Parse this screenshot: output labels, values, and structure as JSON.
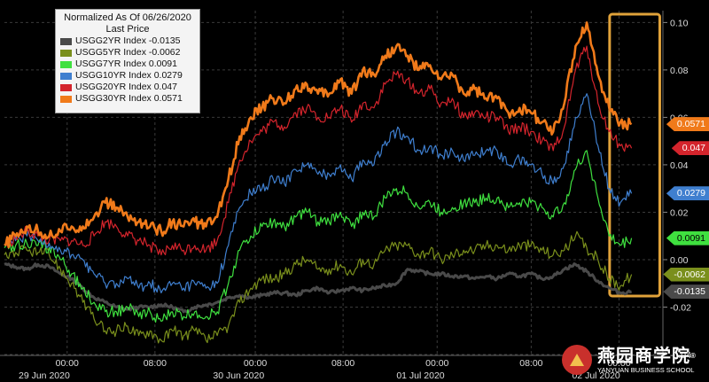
{
  "chart_data": {
    "type": "line",
    "legend": {
      "title_line1": "Normalized As Of 06/26/2020",
      "title_line2": "Last Price",
      "placement": "top-left"
    },
    "series": [
      {
        "name": "USGG2YR Index",
        "last": "-0.0135",
        "color": "#4a4a4a",
        "values": [
          -0.002,
          -0.003,
          -0.004,
          -0.002,
          -0.003,
          -0.006,
          -0.008,
          -0.012,
          -0.016,
          -0.018,
          -0.02,
          -0.021,
          -0.02,
          -0.02,
          -0.019,
          -0.02,
          -0.022,
          -0.02,
          -0.019,
          -0.018,
          -0.016,
          -0.015,
          -0.016,
          -0.015,
          -0.014,
          -0.014,
          -0.015,
          -0.013,
          -0.012,
          -0.014,
          -0.013,
          -0.012,
          -0.013,
          -0.012,
          -0.011,
          -0.01,
          -0.004,
          -0.005,
          -0.006,
          -0.006,
          -0.007,
          -0.007,
          -0.008,
          -0.007,
          -0.008,
          -0.006,
          -0.007,
          -0.006,
          -0.008,
          -0.007,
          -0.004,
          -0.002,
          -0.005,
          -0.009,
          -0.012,
          -0.014,
          -0.0135
        ]
      },
      {
        "name": "USGG5YR Index",
        "last": "-0.0062",
        "color": "#7a8f1c",
        "values": [
          0.002,
          0.003,
          0.004,
          0.003,
          0.002,
          -0.004,
          -0.01,
          -0.018,
          -0.025,
          -0.03,
          -0.03,
          -0.028,
          -0.032,
          -0.03,
          -0.034,
          -0.03,
          -0.032,
          -0.03,
          -0.034,
          -0.032,
          -0.028,
          -0.018,
          -0.012,
          -0.008,
          -0.008,
          -0.006,
          -0.002,
          0.0,
          -0.004,
          -0.004,
          -0.002,
          -0.006,
          0.0,
          -0.002,
          0.004,
          0.006,
          0.006,
          0.002,
          0.004,
          0.0,
          0.002,
          0.004,
          0.004,
          0.006,
          0.006,
          0.004,
          0.006,
          0.006,
          0.004,
          0.002,
          0.004,
          0.01,
          0.005,
          0.0,
          -0.008,
          -0.011,
          -0.0062
        ]
      },
      {
        "name": "USGG7YR Index",
        "last": "0.0091",
        "color": "#3fe03f",
        "values": [
          0.005,
          0.006,
          0.007,
          0.006,
          0.005,
          0.0,
          -0.006,
          -0.012,
          -0.018,
          -0.022,
          -0.022,
          -0.02,
          -0.024,
          -0.022,
          -0.026,
          -0.022,
          -0.024,
          -0.022,
          -0.024,
          -0.022,
          -0.01,
          0.004,
          0.01,
          0.014,
          0.016,
          0.014,
          0.018,
          0.02,
          0.016,
          0.016,
          0.02,
          0.014,
          0.02,
          0.018,
          0.026,
          0.03,
          0.028,
          0.022,
          0.024,
          0.02,
          0.022,
          0.024,
          0.024,
          0.026,
          0.026,
          0.022,
          0.024,
          0.024,
          0.022,
          0.018,
          0.024,
          0.038,
          0.046,
          0.026,
          0.01,
          0.006,
          0.0091
        ]
      },
      {
        "name": "USGG10YR Index",
        "last": "0.0279",
        "color": "#3f7fcf",
        "values": [
          0.006,
          0.008,
          0.01,
          0.008,
          0.007,
          0.004,
          0.002,
          0.0,
          -0.006,
          -0.01,
          -0.01,
          -0.008,
          -0.012,
          -0.01,
          -0.014,
          -0.01,
          -0.012,
          -0.01,
          -0.012,
          -0.01,
          0.006,
          0.022,
          0.028,
          0.03,
          0.034,
          0.032,
          0.038,
          0.04,
          0.036,
          0.036,
          0.04,
          0.034,
          0.042,
          0.04,
          0.05,
          0.054,
          0.052,
          0.046,
          0.048,
          0.044,
          0.046,
          0.042,
          0.044,
          0.046,
          0.046,
          0.04,
          0.042,
          0.04,
          0.036,
          0.032,
          0.04,
          0.06,
          0.07,
          0.048,
          0.03,
          0.024,
          0.0279
        ]
      },
      {
        "name": "USGG20YR Index",
        "last": "0.047",
        "color": "#d4242c",
        "values": [
          0.006,
          0.009,
          0.012,
          0.01,
          0.008,
          0.008,
          0.008,
          0.006,
          0.01,
          0.016,
          0.014,
          0.01,
          0.008,
          0.006,
          0.002,
          0.006,
          0.004,
          0.006,
          0.004,
          0.008,
          0.024,
          0.042,
          0.05,
          0.054,
          0.058,
          0.056,
          0.062,
          0.064,
          0.06,
          0.06,
          0.064,
          0.058,
          0.066,
          0.064,
          0.074,
          0.078,
          0.076,
          0.07,
          0.072,
          0.066,
          0.068,
          0.06,
          0.062,
          0.06,
          0.06,
          0.054,
          0.056,
          0.054,
          0.05,
          0.046,
          0.056,
          0.08,
          0.09,
          0.066,
          0.054,
          0.048,
          0.047
        ]
      },
      {
        "name": "USGG30YR Index",
        "last": "0.0571",
        "color": "#f07a1a",
        "values": [
          0.006,
          0.01,
          0.014,
          0.012,
          0.01,
          0.012,
          0.014,
          0.014,
          0.018,
          0.024,
          0.022,
          0.018,
          0.016,
          0.014,
          0.012,
          0.016,
          0.014,
          0.016,
          0.014,
          0.018,
          0.034,
          0.052,
          0.06,
          0.064,
          0.068,
          0.066,
          0.072,
          0.074,
          0.07,
          0.07,
          0.076,
          0.07,
          0.08,
          0.078,
          0.086,
          0.09,
          0.086,
          0.08,
          0.082,
          0.076,
          0.078,
          0.07,
          0.072,
          0.068,
          0.068,
          0.062,
          0.064,
          0.062,
          0.058,
          0.054,
          0.066,
          0.09,
          0.1,
          0.078,
          0.064,
          0.058,
          0.0571
        ]
      }
    ],
    "yticks": [
      "0.10",
      "0.08",
      "0.06",
      "0.04",
      "0.02",
      "0.00",
      "-0.02",
      "-0.04"
    ],
    "ylim": [
      -0.04,
      0.105
    ],
    "xticks": [
      {
        "label": "00:00",
        "t": 0.1
      },
      {
        "label": "08:00",
        "t": 0.24
      },
      {
        "label": "00:00",
        "t": 0.4
      },
      {
        "label": "08:00",
        "t": 0.54
      },
      {
        "label": "00:00",
        "t": 0.69
      },
      {
        "label": "08:00",
        "t": 0.84
      },
      {
        "label": "00:00",
        "t": 0.98
      }
    ],
    "xdates": [
      {
        "label": "29 Jun 2020",
        "t": 0.12
      },
      {
        "label": "30 Jun 2020",
        "t": 0.43
      },
      {
        "label": "01 Jul 2020",
        "t": 0.72
      },
      {
        "label": "02 Jul 2020",
        "t": 1.0
      }
    ],
    "highlight": {
      "t_start": 0.965,
      "t_end": 1.045,
      "color": "#e0a23a"
    }
  },
  "watermark": {
    "cn": "燕园商学院",
    "en": "YANYUAN BUSINESS SCHOOL",
    "reg": "®"
  }
}
